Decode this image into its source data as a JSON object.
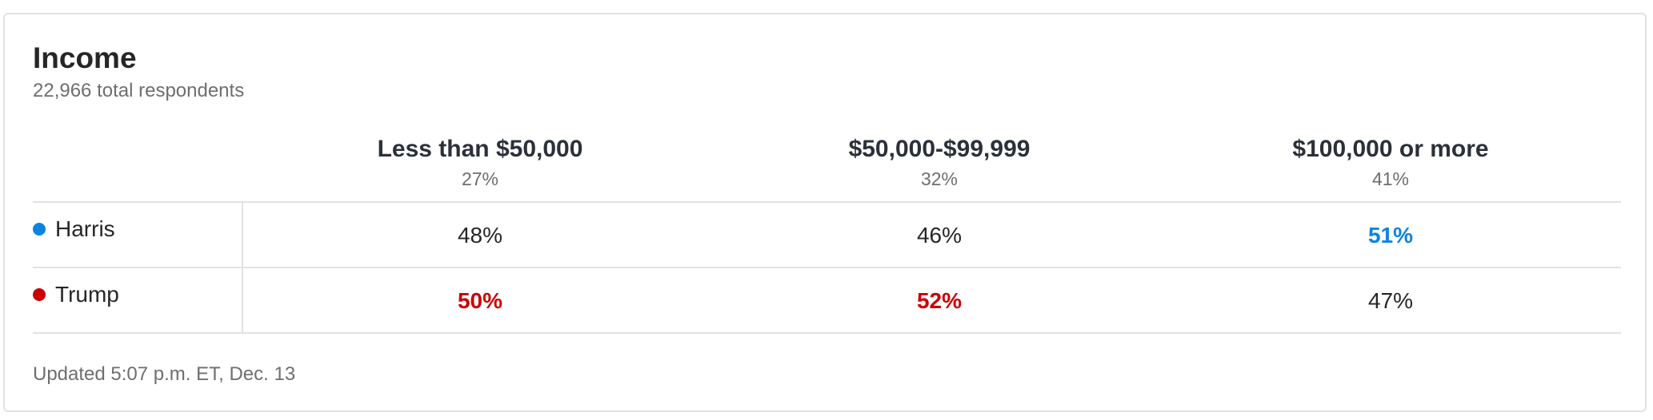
{
  "header": {
    "title": "Income",
    "subtitle": "22,966 total respondents"
  },
  "table": {
    "columns": [
      {
        "label": "Less than $50,000",
        "share": "27%"
      },
      {
        "label": "$50,000-$99,999",
        "share": "32%"
      },
      {
        "label": "$100,000 or more",
        "share": "41%"
      }
    ],
    "rows": [
      {
        "name": "Harris",
        "color": "#0c84df",
        "values": [
          "48%",
          "46%",
          "51%"
        ],
        "highlight": [
          false,
          false,
          true
        ]
      },
      {
        "name": "Trump",
        "color": "#cc0000",
        "values": [
          "50%",
          "52%",
          "47%"
        ],
        "highlight": [
          true,
          true,
          false
        ]
      }
    ]
  },
  "footer": {
    "updated": "Updated 5:07 p.m. ET, Dec. 13"
  }
}
